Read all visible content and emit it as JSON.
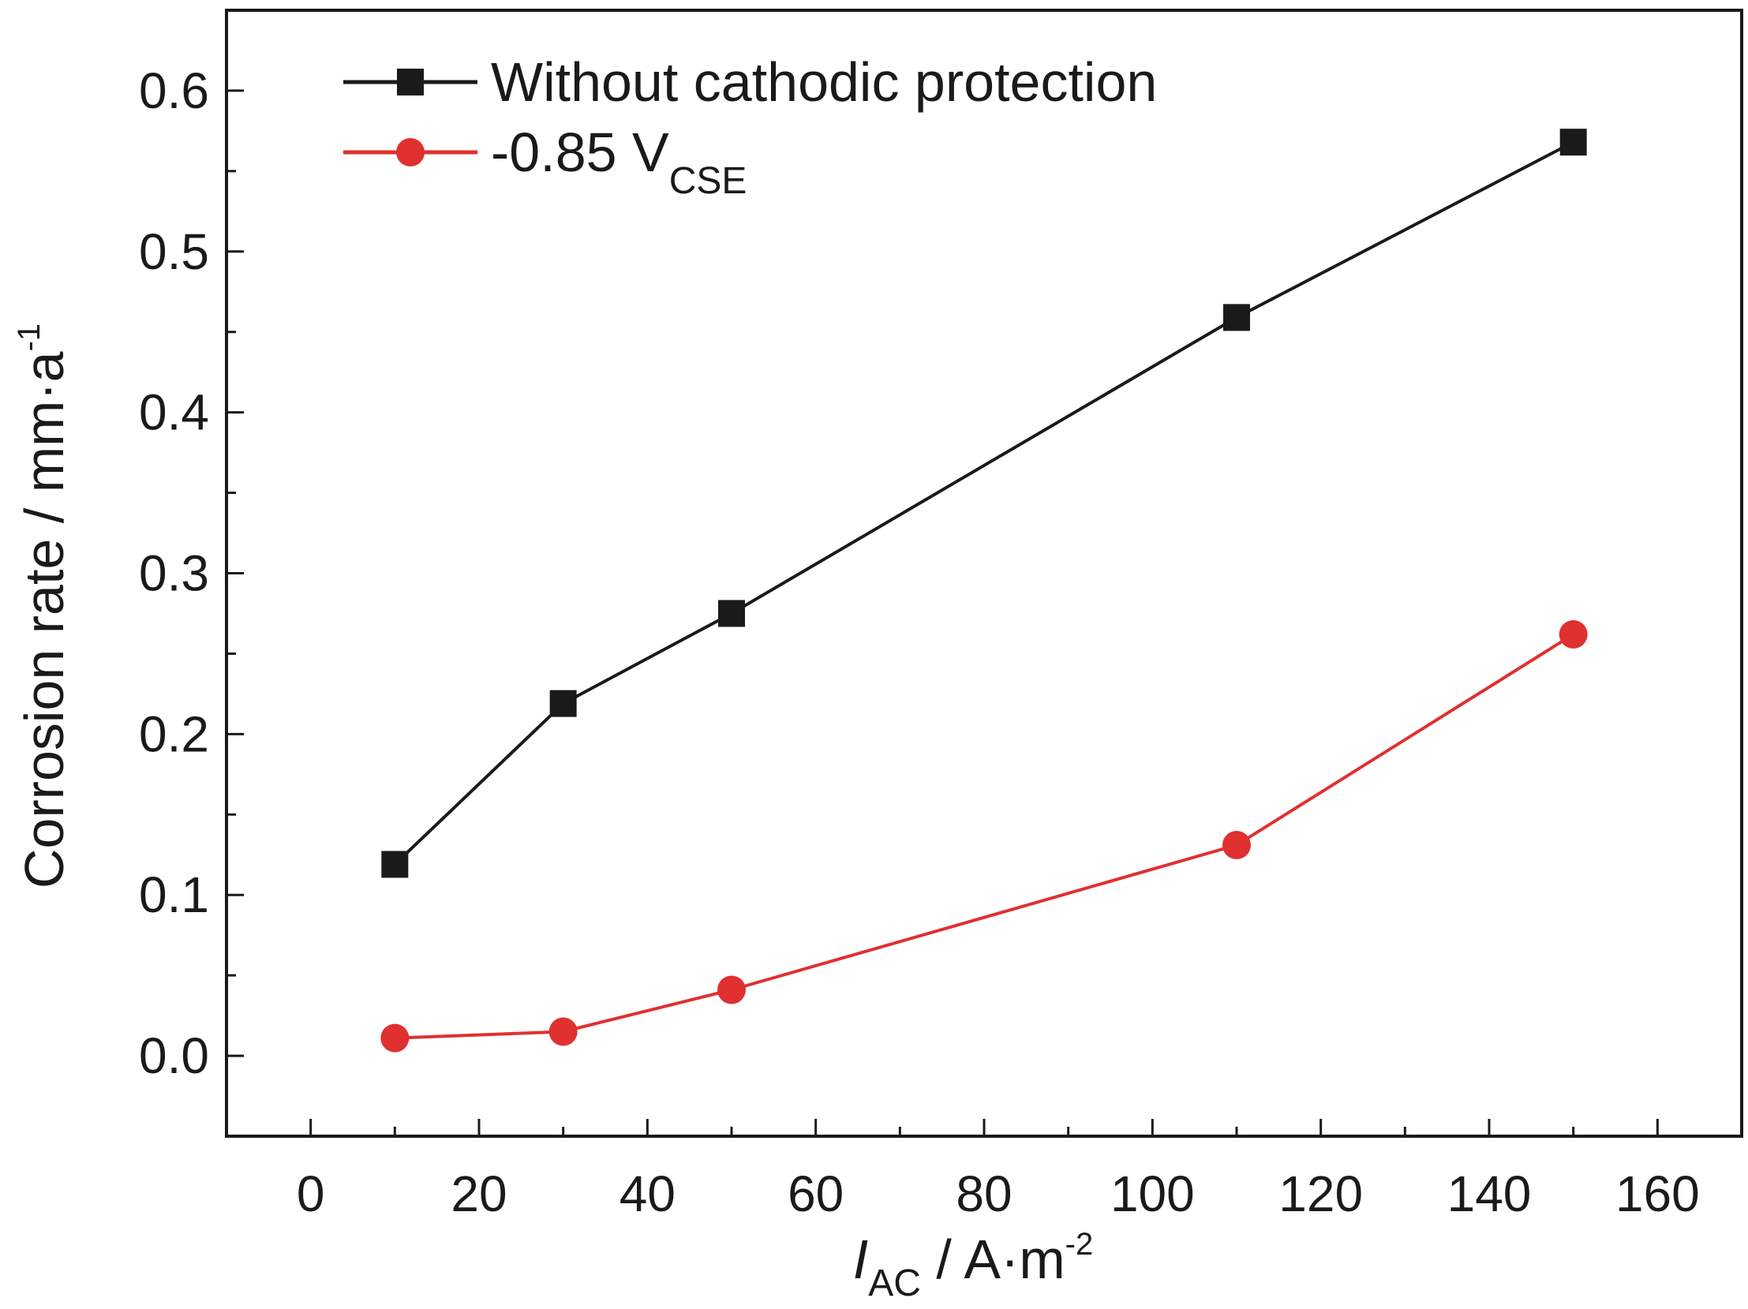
{
  "chart_data": {
    "type": "line",
    "x": [
      10,
      30,
      50,
      110,
      150
    ],
    "series": [
      {
        "name": "Without cathodic protection",
        "color": "#1a1a1a",
        "marker": "square",
        "values": [
          0.119,
          0.219,
          0.275,
          0.459,
          0.568
        ]
      },
      {
        "name": "-0.85 V",
        "name_subscript": "CSE",
        "color": "#e03030",
        "marker": "circle",
        "values": [
          0.011,
          0.015,
          0.041,
          0.131,
          0.262
        ]
      }
    ],
    "xlabel": {
      "italic": "I",
      "subscript": "AC",
      "text": " / A·m",
      "superscript": "-2"
    },
    "ylabel": {
      "text": "Corrosion rate / mm·a",
      "superscript": "-1"
    },
    "xlim": [
      -10,
      170
    ],
    "ylim": [
      -0.05,
      0.65
    ],
    "xticks": [
      0,
      20,
      40,
      60,
      80,
      100,
      120,
      140,
      160
    ],
    "xtick_labels": [
      "0",
      "20",
      "40",
      "60",
      "80",
      "100",
      "120",
      "140",
      "160"
    ],
    "yticks": [
      0.0,
      0.1,
      0.2,
      0.3,
      0.4,
      0.5,
      0.6
    ],
    "ytick_labels": [
      "0.0",
      "0.1",
      "0.2",
      "0.3",
      "0.4",
      "0.5",
      "0.6"
    ],
    "grid": false,
    "legend_position": "top-left"
  }
}
